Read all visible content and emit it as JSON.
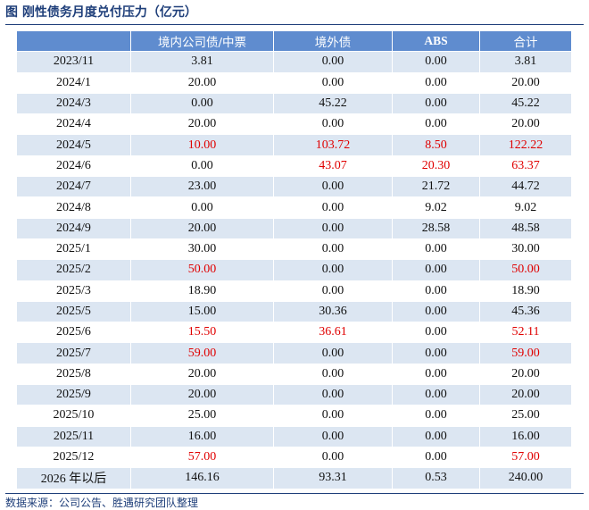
{
  "title": "图 刚性债务月度兑付压力（亿元）",
  "table": {
    "headers": [
      "",
      "境内公司债/中票",
      "境外债",
      "ABS",
      "合计"
    ],
    "rows": [
      {
        "period": "2023/11",
        "domestic": "3.81",
        "overseas": "0.00",
        "abs": "0.00",
        "total": "3.81"
      },
      {
        "period": "2024/1",
        "domestic": "20.00",
        "overseas": "0.00",
        "abs": "0.00",
        "total": "20.00"
      },
      {
        "period": "2024/3",
        "domestic": "0.00",
        "overseas": "45.22",
        "abs": "0.00",
        "total": "45.22"
      },
      {
        "period": "2024/4",
        "domestic": "20.00",
        "overseas": "0.00",
        "abs": "0.00",
        "total": "20.00"
      },
      {
        "period": "2024/5",
        "domestic": "10.00",
        "overseas": "103.72",
        "abs": "8.50",
        "total": "122.22",
        "red": [
          "domestic",
          "overseas",
          "abs",
          "total"
        ]
      },
      {
        "period": "2024/6",
        "domestic": "0.00",
        "overseas": "43.07",
        "abs": "20.30",
        "total": "63.37",
        "red": [
          "overseas",
          "abs",
          "total"
        ]
      },
      {
        "period": "2024/7",
        "domestic": "23.00",
        "overseas": "0.00",
        "abs": "21.72",
        "total": "44.72"
      },
      {
        "period": "2024/8",
        "domestic": "0.00",
        "overseas": "0.00",
        "abs": "9.02",
        "total": "9.02"
      },
      {
        "period": "2024/9",
        "domestic": "20.00",
        "overseas": "0.00",
        "abs": "28.58",
        "total": "48.58"
      },
      {
        "period": "2025/1",
        "domestic": "30.00",
        "overseas": "0.00",
        "abs": "0.00",
        "total": "30.00"
      },
      {
        "period": "2025/2",
        "domestic": "50.00",
        "overseas": "0.00",
        "abs": "0.00",
        "total": "50.00",
        "red": [
          "domestic",
          "total"
        ]
      },
      {
        "period": "2025/3",
        "domestic": "18.90",
        "overseas": "0.00",
        "abs": "0.00",
        "total": "18.90"
      },
      {
        "period": "2025/5",
        "domestic": "15.00",
        "overseas": "30.36",
        "abs": "0.00",
        "total": "45.36"
      },
      {
        "period": "2025/6",
        "domestic": "15.50",
        "overseas": "36.61",
        "abs": "0.00",
        "total": "52.11",
        "red": [
          "domestic",
          "overseas",
          "total"
        ]
      },
      {
        "period": "2025/7",
        "domestic": "59.00",
        "overseas": "0.00",
        "abs": "0.00",
        "total": "59.00",
        "red": [
          "domestic",
          "total"
        ]
      },
      {
        "period": "2025/8",
        "domestic": "20.00",
        "overseas": "0.00",
        "abs": "0.00",
        "total": "20.00"
      },
      {
        "period": "2025/9",
        "domestic": "20.00",
        "overseas": "0.00",
        "abs": "0.00",
        "total": "20.00"
      },
      {
        "period": "2025/10",
        "domestic": "25.00",
        "overseas": "0.00",
        "abs": "0.00",
        "total": "25.00"
      },
      {
        "period": "2025/11",
        "domestic": "16.00",
        "overseas": "0.00",
        "abs": "0.00",
        "total": "16.00"
      },
      {
        "period": "2025/12",
        "domestic": "57.00",
        "overseas": "0.00",
        "abs": "0.00",
        "total": "57.00",
        "red": [
          "domestic",
          "total"
        ]
      },
      {
        "period": "2026 年以后",
        "domestic": "146.16",
        "overseas": "93.31",
        "abs": "0.53",
        "total": "240.00"
      }
    ]
  },
  "source": "数据来源：公司公告、胜遇研究团队整理",
  "colors": {
    "header_bg": "#5f8ccf",
    "stripe_bg": "#dce6f2",
    "highlight_text": "#e00000",
    "title_text": "#1f3f7a"
  }
}
